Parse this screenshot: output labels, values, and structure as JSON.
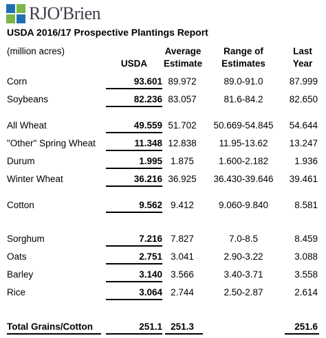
{
  "logo": {
    "brand_text": "RJO'Brien",
    "colors": [
      "#1f6fb3",
      "#7ab648",
      "#1f6fb3",
      "#7ab648"
    ]
  },
  "title": "USDA 2016/17 Prospective Plantings Report",
  "headers": {
    "units": "(million acres)",
    "usda": "USDA",
    "average_line1": "Average",
    "average_line2": "Estimate",
    "range_line1": "Range of",
    "range_line2": "Estimates",
    "last_line1": "Last",
    "last_line2": "Year"
  },
  "rows": [
    {
      "label": "Corn",
      "usda": "93.601",
      "avg": "89.972",
      "range": "89.0-91.0",
      "last": "87.999"
    },
    {
      "label": "Soybeans",
      "usda": "82.236",
      "avg": "83.057",
      "range": "81.6-84.2",
      "last": "82.650"
    },
    {
      "label": "All Wheat",
      "usda": "49.559",
      "avg": "51.702",
      "range": "50.669-54.845",
      "last": "54.644"
    },
    {
      "label": "\"Other\" Spring Wheat",
      "usda": "11.348",
      "avg": "12.838",
      "range": "11.95-13.62",
      "last": "13.247"
    },
    {
      "label": "Durum",
      "usda": "1.995",
      "avg": "1.875",
      "range": "1.600-2.182",
      "last": "1.936"
    },
    {
      "label": "Winter Wheat",
      "usda": "36.216",
      "avg": "36.925",
      "range": "36.430-39.646",
      "last": "39.461"
    },
    {
      "label": "Cotton",
      "usda": "9.562",
      "avg": "9.412",
      "range": "9.060-9.840",
      "last": "8.581"
    },
    {
      "label": "Sorghum",
      "usda": "7.216",
      "avg": "7.827",
      "range": "7.0-8.5",
      "last": "8.459"
    },
    {
      "label": "Oats",
      "usda": "2.751",
      "avg": "3.041",
      "range": "2.90-3.22",
      "last": "3.088"
    },
    {
      "label": "Barley",
      "usda": "3.140",
      "avg": "3.566",
      "range": "3.40-3.71",
      "last": "3.558"
    },
    {
      "label": "Rice",
      "usda": "3.064",
      "avg": "2.744",
      "range": "2.50-2.87",
      "last": "2.614"
    }
  ],
  "total": {
    "label": "Total Grains/Cotton",
    "usda": "251.1",
    "avg": "251.3",
    "range": "",
    "last": "251.6"
  }
}
